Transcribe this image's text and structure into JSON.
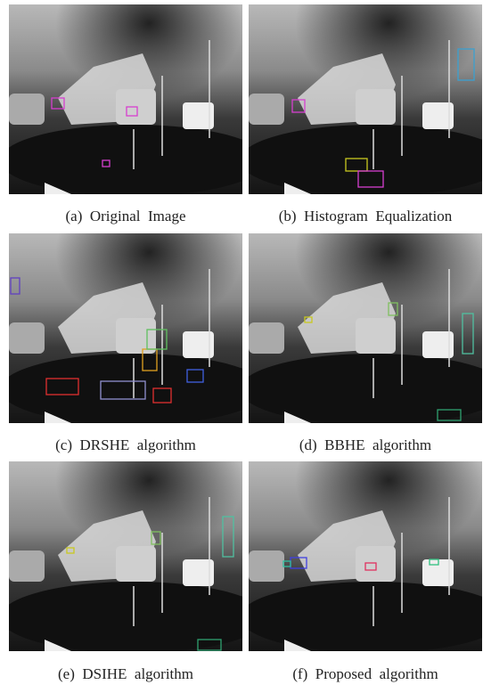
{
  "figure": {
    "panels": [
      {
        "caption": "(a)  Original  Image"
      },
      {
        "caption": "(b)  Histogram  Equalization"
      },
      {
        "caption": "(c)  DRSHE  algorithm"
      },
      {
        "caption": "(d)  BBHE  algorithm"
      },
      {
        "caption": "(e)  DSIHE  algorithm"
      },
      {
        "caption": "(f)  Proposed  algorithm"
      }
    ]
  }
}
